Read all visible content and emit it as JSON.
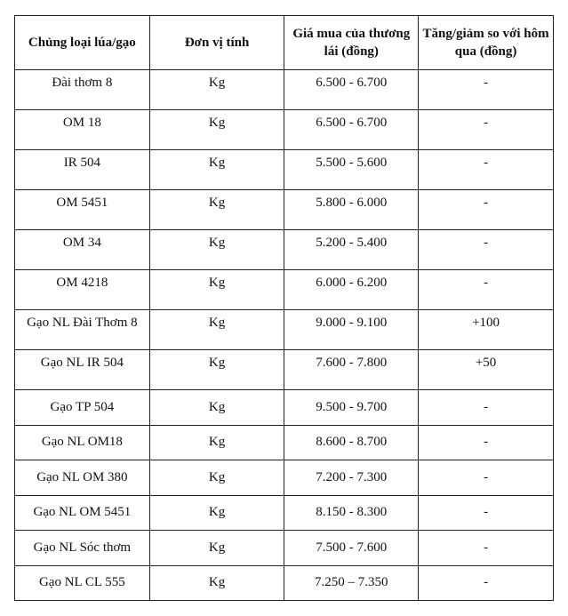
{
  "table": {
    "headers": [
      "Chủng loại lúa/gạo",
      "Đơn vị tính",
      "Giá mua của thương lái (đồng)",
      "Tăng/giảm so với hôm qua (đồng)"
    ],
    "rows": [
      [
        "Đài thơm 8",
        "Kg",
        "6.500 - 6.700",
        "-"
      ],
      [
        "OM 18",
        "Kg",
        "6.500 - 6.700",
        "-"
      ],
      [
        "IR 504",
        "Kg",
        "5.500 - 5.600",
        "-"
      ],
      [
        "OM 5451",
        "Kg",
        "5.800 - 6.000",
        "-"
      ],
      [
        "OM 34",
        "Kg",
        "5.200 - 5.400",
        "-"
      ],
      [
        "OM 4218",
        "Kg",
        "6.000 - 6.200",
        "-"
      ],
      [
        "Gạo NL Đài Thơm 8",
        "Kg",
        "9.000 - 9.100",
        "+100"
      ],
      [
        "Gạo NL IR 504",
        "Kg",
        "7.600 - 7.800",
        "+50"
      ],
      [
        "Gạo TP 504",
        "Kg",
        "9.500 - 9.700",
        "-"
      ],
      [
        "Gạo NL OM18",
        "Kg",
        "8.600 - 8.700",
        "-"
      ],
      [
        "Gạo NL OM 380",
        "Kg",
        "7.200 - 7.300",
        "-"
      ],
      [
        "Gạo NL OM 5451",
        "Kg",
        "8.150 - 8.300",
        "-"
      ],
      [
        "Gạo NL Sóc thơm",
        "Kg",
        "7.500 - 7.600",
        "-"
      ],
      [
        "Gạo NL CL 555",
        "Kg",
        "7.250 – 7.350",
        "-"
      ]
    ]
  }
}
